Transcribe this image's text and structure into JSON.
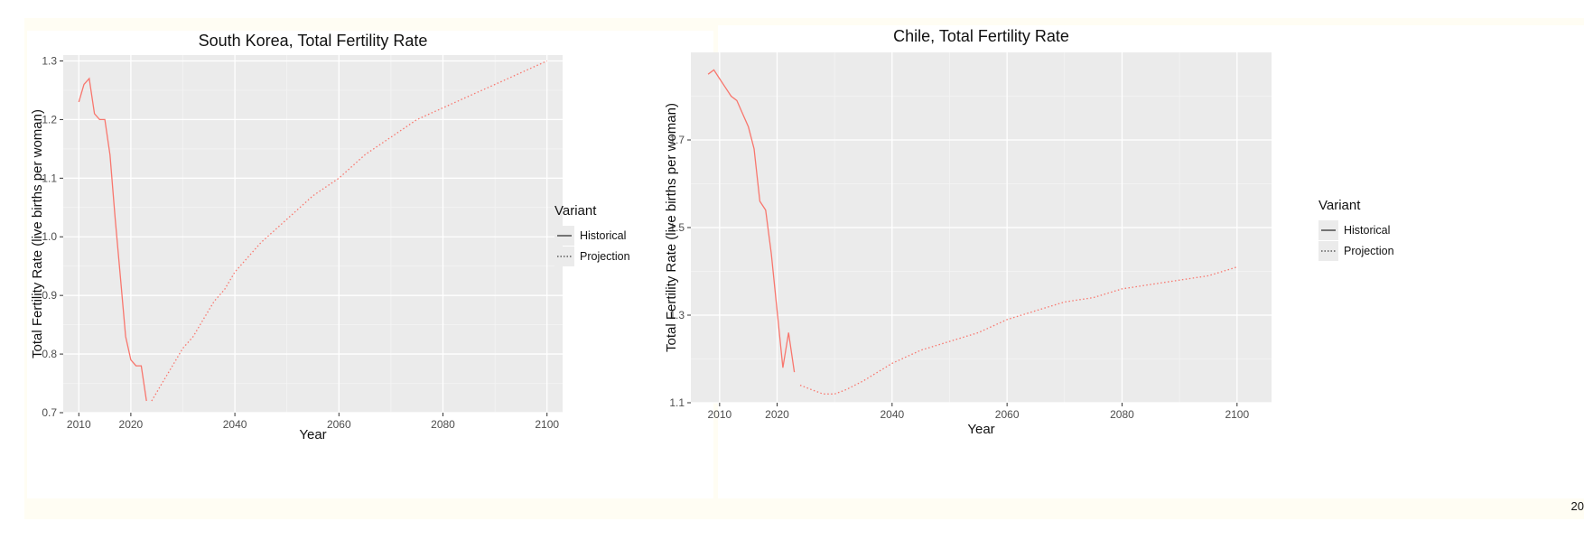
{
  "corner_text": "20",
  "chart_data": [
    {
      "type": "line",
      "title": "South Korea, Total Fertility Rate",
      "xlabel": "Year",
      "ylabel": "Total Fertility Rate (live births per woman)",
      "xlim": [
        2007,
        2103
      ],
      "ylim": [
        0.7,
        1.31
      ],
      "xticks": [
        2010,
        2020,
        2040,
        2060,
        2080,
        2100
      ],
      "yticks": [
        0.7,
        0.8,
        0.9,
        1.0,
        1.1,
        1.2,
        1.3
      ],
      "ytick_labels": [
        "0.7",
        "0.8",
        "0.9",
        "1.0",
        "1.1",
        "1.2",
        "1.3"
      ],
      "grid": true,
      "legend": {
        "title": "Variant",
        "position": "right",
        "entries": [
          "Historical",
          "Projection"
        ]
      },
      "series": [
        {
          "name": "Historical",
          "style": "solid",
          "color": "#f8766d",
          "x": [
            2010,
            2011,
            2012,
            2013,
            2014,
            2015,
            2016,
            2017,
            2018,
            2019,
            2020,
            2021,
            2022,
            2023
          ],
          "y": [
            1.23,
            1.26,
            1.27,
            1.21,
            1.2,
            1.2,
            1.14,
            1.03,
            0.93,
            0.83,
            0.79,
            0.78,
            0.78,
            0.72
          ]
        },
        {
          "name": "Projection",
          "style": "dotted",
          "color": "#f8766d",
          "x": [
            2024,
            2026,
            2028,
            2030,
            2032,
            2034,
            2036,
            2038,
            2040,
            2045,
            2050,
            2055,
            2060,
            2065,
            2070,
            2075,
            2080,
            2085,
            2090,
            2095,
            2100
          ],
          "y": [
            0.72,
            0.75,
            0.78,
            0.81,
            0.83,
            0.86,
            0.89,
            0.91,
            0.94,
            0.99,
            1.03,
            1.07,
            1.1,
            1.14,
            1.17,
            1.2,
            1.22,
            1.24,
            1.26,
            1.28,
            1.3
          ]
        }
      ]
    },
    {
      "type": "line",
      "title": "Chile, Total Fertility Rate",
      "xlabel": "Year",
      "ylabel": "Total Fertility Rate (live births per woman)",
      "xlim": [
        2005,
        2106
      ],
      "ylim": [
        1.1,
        1.9
      ],
      "xticks": [
        2010,
        2020,
        2040,
        2060,
        2080,
        2100
      ],
      "yticks": [
        1.1,
        1.3,
        1.5,
        1.7
      ],
      "ytick_labels": [
        "1.1",
        "1.3",
        "1.5",
        "1.7"
      ],
      "grid": true,
      "legend": {
        "title": "Variant",
        "position": "right",
        "entries": [
          "Historical",
          "Projection"
        ]
      },
      "series": [
        {
          "name": "Historical",
          "style": "solid",
          "color": "#f8766d",
          "x": [
            2008,
            2009,
            2010,
            2011,
            2012,
            2013,
            2014,
            2015,
            2016,
            2017,
            2018,
            2019,
            2020,
            2021,
            2022,
            2023
          ],
          "y": [
            1.85,
            1.86,
            1.84,
            1.82,
            1.8,
            1.79,
            1.76,
            1.73,
            1.68,
            1.56,
            1.54,
            1.44,
            1.31,
            1.18,
            1.26,
            1.17
          ]
        },
        {
          "name": "Projection",
          "style": "dotted",
          "color": "#f8766d",
          "x": [
            2024,
            2026,
            2028,
            2030,
            2032,
            2035,
            2040,
            2045,
            2050,
            2055,
            2060,
            2065,
            2070,
            2075,
            2080,
            2085,
            2090,
            2095,
            2100
          ],
          "y": [
            1.14,
            1.13,
            1.12,
            1.12,
            1.13,
            1.15,
            1.19,
            1.22,
            1.24,
            1.26,
            1.29,
            1.31,
            1.33,
            1.34,
            1.36,
            1.37,
            1.38,
            1.39,
            1.41
          ]
        }
      ]
    }
  ]
}
